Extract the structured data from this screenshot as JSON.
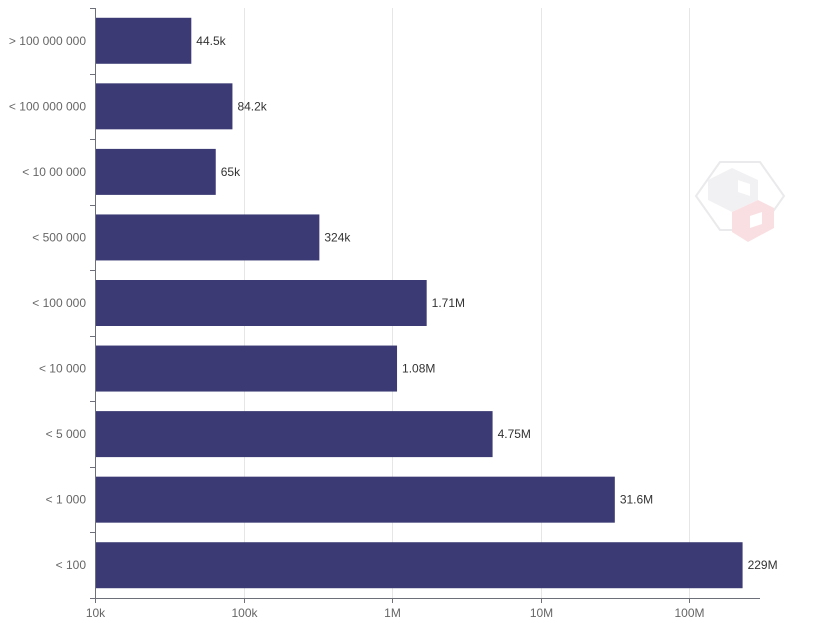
{
  "chart_data": {
    "type": "bar",
    "orientation": "horizontal",
    "xscale": "log",
    "xlim": [
      10000,
      300000000
    ],
    "grid": true,
    "legend": "none",
    "bar_color": "#3b3a74",
    "categories": [
      "> 100 000 000",
      "< 100 000 000",
      "< 10 00 000",
      "< 500 000",
      "< 100 000",
      "< 10 000",
      "< 5 000",
      "< 1 000",
      "< 100"
    ],
    "values": [
      44500,
      84200,
      65000,
      324000,
      1710000,
      1080000,
      4750000,
      31600000,
      229000000
    ],
    "data_labels": [
      "44.5k",
      "84.2k",
      "65k",
      "324k",
      "1.71M",
      "1.08M",
      "4.75M",
      "31.6M",
      "229M"
    ],
    "x_ticks": [
      {
        "value": 10000,
        "label": "10k"
      },
      {
        "value": 100000,
        "label": "100k"
      },
      {
        "value": 1000000,
        "label": "1M"
      },
      {
        "value": 10000000,
        "label": "10M"
      },
      {
        "value": 100000000,
        "label": "100M"
      }
    ],
    "title": "",
    "xlabel": "",
    "ylabel": ""
  }
}
